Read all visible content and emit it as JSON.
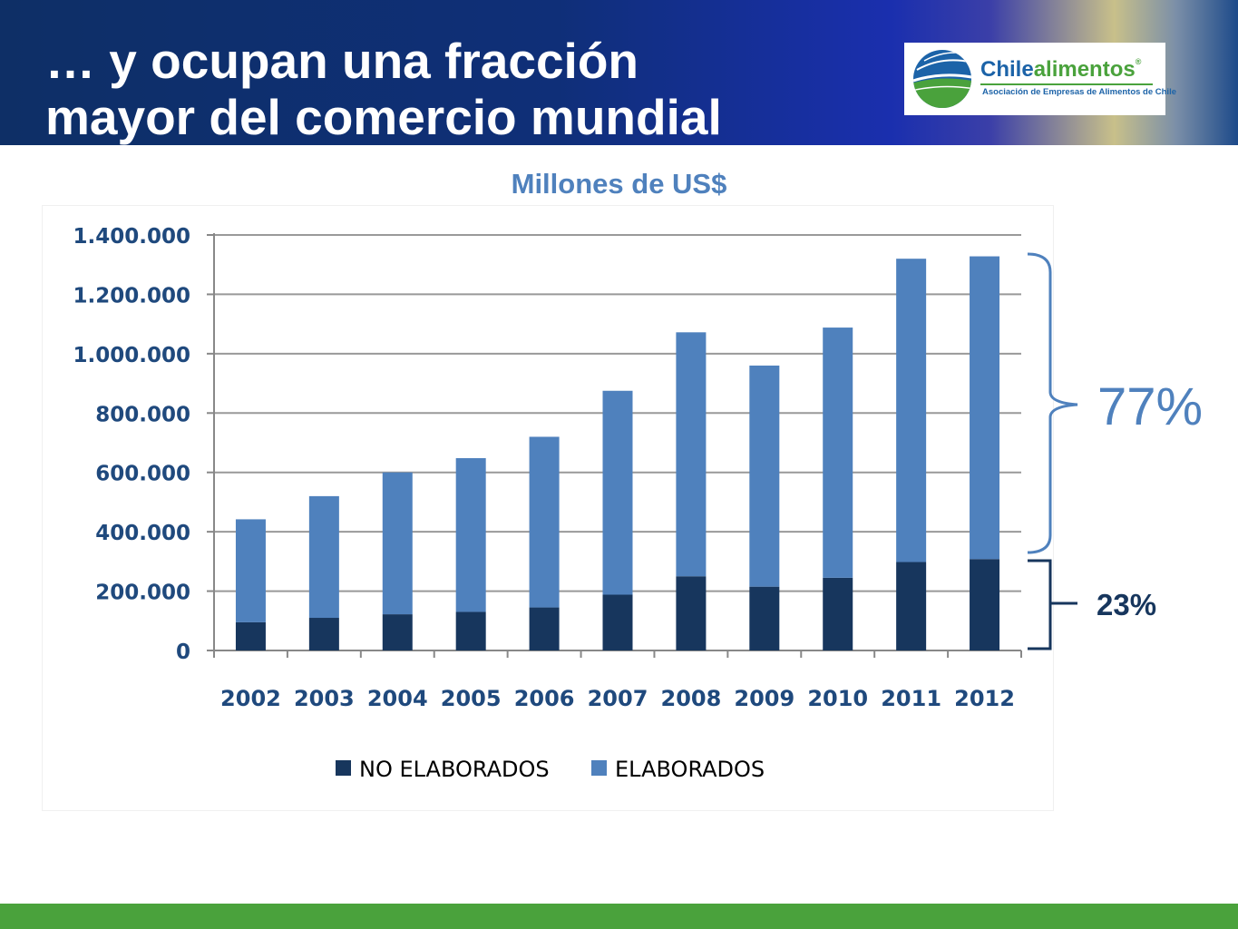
{
  "header": {
    "title": "… y ocupan una fracción\nmayor del comercio mundial",
    "logo": {
      "name_part1": "Chile",
      "name_part2": "alimentos",
      "registered": "®",
      "tagline": "Asociación de Empresas de Alimentos de Chile"
    }
  },
  "colors": {
    "no_elaborados": "#17365d",
    "elaborados": "#4f81bd",
    "footer": "#4aa23c",
    "header_blue": "#0f2f78"
  },
  "annotations": {
    "elaborados_share": "77%",
    "no_elaborados_share": "23%"
  },
  "chart_data": {
    "type": "bar",
    "stacked": true,
    "title": "Millones de US$",
    "xlabel": "",
    "ylabel": "",
    "categories": [
      "2002",
      "2003",
      "2004",
      "2005",
      "2006",
      "2007",
      "2008",
      "2009",
      "2010",
      "2011",
      "2012"
    ],
    "series": [
      {
        "name": "NO ELABORADOS",
        "values": [
          95000,
          110000,
          122000,
          130000,
          145000,
          188000,
          250000,
          215000,
          245000,
          298000,
          308000
        ]
      },
      {
        "name": "ELABORADOS",
        "values": [
          347000,
          410000,
          478000,
          518000,
          575000,
          687000,
          822000,
          745000,
          843000,
          1022000,
          1020000
        ]
      }
    ],
    "ylim": [
      0,
      1400000
    ],
    "yticks": [
      0,
      200000,
      400000,
      600000,
      800000,
      1000000,
      1200000,
      1400000
    ],
    "ytick_labels": [
      "0",
      "200.000",
      "400.000",
      "600.000",
      "800.000",
      "1.000.000",
      "1.200.000",
      "1.400.000"
    ],
    "grid": true,
    "legend": "bottom"
  }
}
